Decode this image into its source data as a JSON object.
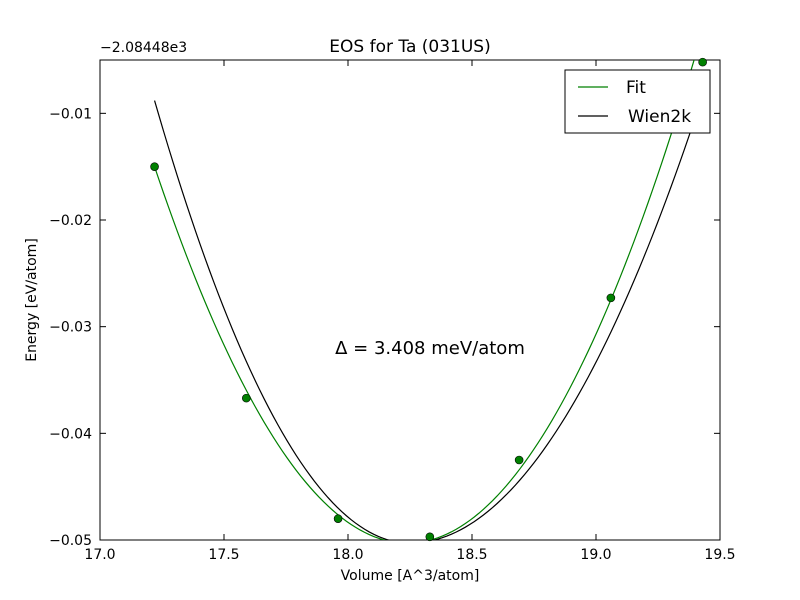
{
  "chart_data": {
    "type": "line",
    "title": "EOS for Ta (031US)",
    "xlabel": "Volume [A^3/atom]",
    "ylabel": "Energy [eV/atom]",
    "y_offset_label": "−2.08448e3",
    "xlim": [
      17.0,
      19.5
    ],
    "ylim": [
      -0.05,
      -0.005
    ],
    "x_ticks": [
      17.0,
      17.5,
      18.0,
      18.5,
      19.0,
      19.5
    ],
    "x_tick_labels": [
      "17.0",
      "17.5",
      "18.0",
      "18.5",
      "19.0",
      "19.5"
    ],
    "y_ticks": [
      -0.05,
      -0.04,
      -0.03,
      -0.02,
      -0.01
    ],
    "y_tick_labels": [
      "−0.05",
      "−0.04",
      "−0.03",
      "−0.02",
      "−0.01"
    ],
    "grid": false,
    "legend_position": "top-right",
    "annotation": "Δ = 3.408 meV/atom",
    "series": [
      {
        "name": "Fit",
        "color": "#008000",
        "kind": "fit-line",
        "x_range": [
          17.22,
          19.43
        ],
        "vertex": [
          18.24,
          -0.0503
        ],
        "points_x": [
          17.22,
          17.59,
          17.96,
          18.33,
          18.69,
          19.06,
          19.43
        ],
        "points_y": [
          -0.015,
          -0.0367,
          -0.048,
          -0.0497,
          -0.0425,
          -0.0273,
          -0.0052
        ]
      },
      {
        "name": "Wien2k",
        "color": "#000000",
        "kind": "curve",
        "x_range": [
          17.22,
          19.43
        ],
        "start": [
          17.22,
          -0.0088
        ],
        "vertex": [
          18.25,
          -0.0503
        ],
        "end": [
          19.43,
          -0.0083
        ]
      }
    ]
  }
}
